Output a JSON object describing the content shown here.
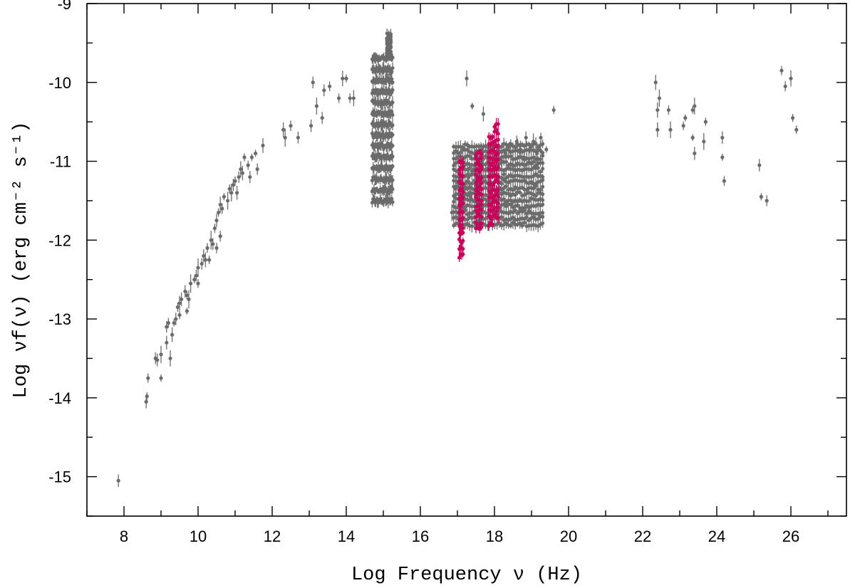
{
  "chart_data": {
    "type": "scatter",
    "title": "",
    "xlabel": "Log Frequency ν (Hz)",
    "ylabel": "Log νf(ν) (erg cm⁻² s⁻¹)",
    "xlim": [
      7,
      27.5
    ],
    "ylim": [
      -15.5,
      -9
    ],
    "x_ticks": [
      8,
      10,
      12,
      14,
      16,
      18,
      20,
      22,
      24,
      26
    ],
    "x_tick_labels": [
      "8",
      "10",
      "12",
      "14",
      "16",
      "18",
      "20",
      "22",
      "24",
      "26"
    ],
    "y_ticks": [
      -15,
      -14,
      -13,
      -12,
      -11,
      -10,
      -9
    ],
    "y_tick_labels": [
      "-15",
      "-14",
      "-13",
      "-12",
      "-11",
      "-10",
      "-9"
    ],
    "grid": false,
    "legend": "none",
    "colors": {
      "archival": "#6b6b6b",
      "highlight": "#c8005a"
    },
    "series": [
      {
        "color": "#6b6b6b",
        "points": [
          [
            7.85,
            -15.05
          ],
          [
            8.6,
            -14.05
          ],
          [
            8.62,
            -13.98
          ],
          [
            8.65,
            -13.75
          ],
          [
            8.85,
            -13.5
          ],
          [
            8.9,
            -13.52
          ],
          [
            9.0,
            -13.75
          ],
          [
            9.0,
            -13.45
          ],
          [
            9.15,
            -13.3
          ],
          [
            9.15,
            -13.1
          ],
          [
            9.2,
            -13.05
          ],
          [
            9.25,
            -13.5
          ],
          [
            9.3,
            -13.2
          ],
          [
            9.35,
            -13.05
          ],
          [
            9.4,
            -13.0
          ],
          [
            9.45,
            -12.85
          ],
          [
            9.5,
            -12.8
          ],
          [
            9.5,
            -12.95
          ],
          [
            9.55,
            -12.75
          ],
          [
            9.65,
            -12.65
          ],
          [
            9.7,
            -12.7
          ],
          [
            9.7,
            -12.9
          ],
          [
            9.75,
            -12.75
          ],
          [
            9.8,
            -12.55
          ],
          [
            9.9,
            -12.5
          ],
          [
            9.95,
            -12.45
          ],
          [
            10.0,
            -12.35
          ],
          [
            10.0,
            -12.55
          ],
          [
            10.1,
            -12.3
          ],
          [
            10.15,
            -12.2
          ],
          [
            10.2,
            -12.25
          ],
          [
            10.25,
            -12.1
          ],
          [
            10.3,
            -12.25
          ],
          [
            10.35,
            -12.0
          ],
          [
            10.4,
            -12.05
          ],
          [
            10.45,
            -11.85
          ],
          [
            10.5,
            -11.75
          ],
          [
            10.5,
            -12.1
          ],
          [
            10.55,
            -11.65
          ],
          [
            10.6,
            -11.55
          ],
          [
            10.6,
            -11.95
          ],
          [
            10.65,
            -11.6
          ],
          [
            10.7,
            -11.45
          ],
          [
            10.8,
            -11.5
          ],
          [
            10.85,
            -11.35
          ],
          [
            10.9,
            -11.4
          ],
          [
            10.95,
            -11.3
          ],
          [
            11.0,
            -11.25
          ],
          [
            11.05,
            -11.4
          ],
          [
            11.1,
            -11.2
          ],
          [
            11.15,
            -11.1
          ],
          [
            11.2,
            -11.15
          ],
          [
            11.25,
            -10.95
          ],
          [
            11.35,
            -11.05
          ],
          [
            11.4,
            -11.2
          ],
          [
            11.45,
            -10.95
          ],
          [
            11.55,
            -10.9
          ],
          [
            11.6,
            -11.1
          ],
          [
            11.75,
            -10.8
          ],
          [
            12.3,
            -10.6
          ],
          [
            12.35,
            -10.7
          ],
          [
            12.5,
            -10.55
          ],
          [
            12.7,
            -10.7
          ],
          [
            13.05,
            -10.55
          ],
          [
            13.1,
            -10.0
          ],
          [
            13.2,
            -10.3
          ],
          [
            13.35,
            -10.45
          ],
          [
            13.4,
            -10.1
          ],
          [
            13.55,
            -10.05
          ],
          [
            13.8,
            -10.2
          ],
          [
            13.9,
            -9.95
          ],
          [
            14.0,
            -9.95
          ],
          [
            14.1,
            -10.2
          ],
          [
            14.2,
            -10.2
          ],
          [
            16.85,
            -11.65
          ],
          [
            16.95,
            -11.35
          ],
          [
            17.05,
            -11.55
          ],
          [
            17.2,
            -11.35
          ],
          [
            17.25,
            -9.95
          ],
          [
            17.3,
            -11.2
          ],
          [
            17.35,
            -11.45
          ],
          [
            17.4,
            -10.3
          ],
          [
            17.45,
            -11.1
          ],
          [
            17.5,
            -11.3
          ],
          [
            17.55,
            -11.55
          ],
          [
            17.65,
            -11.05
          ],
          [
            17.7,
            -10.4
          ],
          [
            17.75,
            -11.25
          ],
          [
            17.8,
            -10.95
          ],
          [
            17.85,
            -11.3
          ],
          [
            17.95,
            -10.85
          ],
          [
            18.05,
            -10.6
          ],
          [
            18.2,
            -11.0
          ],
          [
            18.3,
            -10.9
          ],
          [
            18.4,
            -10.8
          ],
          [
            18.5,
            -11.05
          ],
          [
            18.6,
            -10.75
          ],
          [
            18.7,
            -10.85
          ],
          [
            18.8,
            -10.95
          ],
          [
            18.85,
            -10.7
          ],
          [
            18.95,
            -10.85
          ],
          [
            19.05,
            -10.75
          ],
          [
            19.15,
            -10.9
          ],
          [
            19.25,
            -10.7
          ],
          [
            19.4,
            -10.85
          ],
          [
            19.6,
            -10.35
          ],
          [
            22.35,
            -10.0
          ],
          [
            22.4,
            -10.35
          ],
          [
            22.4,
            -10.6
          ],
          [
            22.45,
            -10.2
          ],
          [
            22.7,
            -10.35
          ],
          [
            22.75,
            -10.6
          ],
          [
            23.1,
            -10.55
          ],
          [
            23.15,
            -10.45
          ],
          [
            23.35,
            -10.35
          ],
          [
            23.35,
            -10.7
          ],
          [
            23.4,
            -10.9
          ],
          [
            23.4,
            -10.3
          ],
          [
            23.65,
            -10.75
          ],
          [
            23.7,
            -10.5
          ],
          [
            24.15,
            -10.7
          ],
          [
            24.15,
            -10.95
          ],
          [
            24.2,
            -11.25
          ],
          [
            25.15,
            -11.05
          ],
          [
            25.2,
            -11.45
          ],
          [
            25.35,
            -11.5
          ],
          [
            25.75,
            -9.85
          ],
          [
            25.85,
            -10.05
          ],
          [
            26.0,
            -9.95
          ],
          [
            26.05,
            -10.45
          ],
          [
            26.15,
            -10.6
          ]
        ],
        "bands": [
          {
            "x_start": 14.7,
            "x_end": 15.25,
            "n": 24,
            "y_min": -11.5,
            "y_max": -9.7
          },
          {
            "x_start": 15.1,
            "x_end": 15.2,
            "n": 3,
            "y_min": -9.65,
            "y_max": -9.4
          },
          {
            "x_start": 16.9,
            "x_end": 19.3,
            "n": 40,
            "y_min": -11.8,
            "y_max": -10.8
          }
        ]
      },
      {
        "color": "#c8005a",
        "points": [],
        "bands": [
          {
            "x_start": 17.05,
            "x_end": 17.15,
            "n": 4,
            "y_min": -12.2,
            "y_max": -11.0
          },
          {
            "x_start": 17.5,
            "x_end": 17.65,
            "n": 4,
            "y_min": -11.85,
            "y_max": -10.9
          },
          {
            "x_start": 17.85,
            "x_end": 17.95,
            "n": 3,
            "y_min": -11.8,
            "y_max": -10.7
          },
          {
            "x_start": 18.0,
            "x_end": 18.1,
            "n": 3,
            "y_min": -11.7,
            "y_max": -10.55
          }
        ]
      }
    ]
  }
}
